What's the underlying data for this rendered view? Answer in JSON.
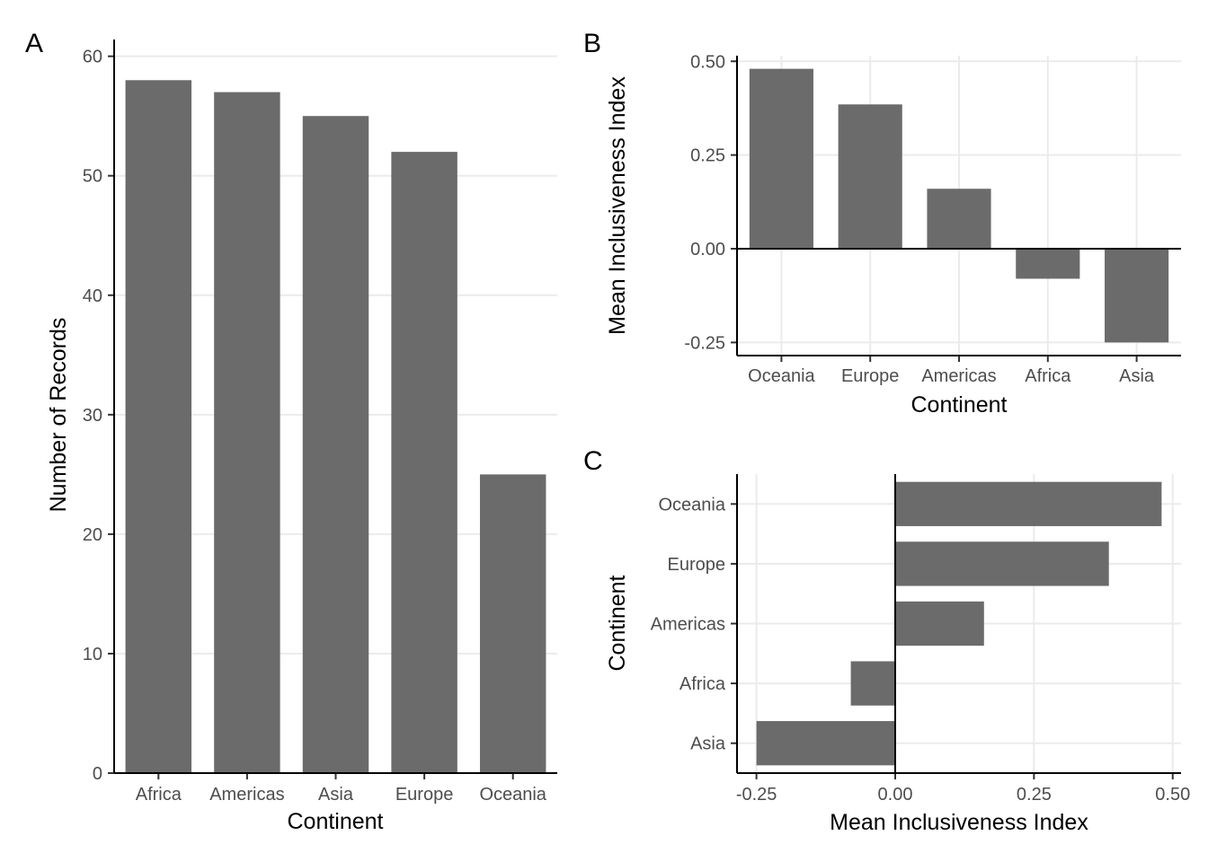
{
  "chart_data": [
    {
      "panel": "A",
      "type": "bar",
      "orientation": "vertical",
      "categories": [
        "Africa",
        "Americas",
        "Asia",
        "Europe",
        "Oceania"
      ],
      "values": [
        58,
        57,
        55,
        52,
        25
      ],
      "xlabel": "Continent",
      "ylabel": "Number of Records",
      "ylim": [
        0,
        60
      ],
      "yticks": [
        "0",
        "10",
        "20",
        "30",
        "40",
        "50",
        "60"
      ],
      "ytick_values": [
        0,
        10,
        20,
        30,
        40,
        50,
        60
      ],
      "bar_color": "#6b6b6b",
      "grid": "horizontal"
    },
    {
      "panel": "B",
      "type": "bar",
      "orientation": "vertical",
      "categories": [
        "Oceania",
        "Europe",
        "Americas",
        "Africa",
        "Asia"
      ],
      "values": [
        0.48,
        0.385,
        0.16,
        -0.08,
        -0.25
      ],
      "xlabel": "Continent",
      "ylabel": "Mean Inclusiveness Index",
      "ylim": [
        -0.285,
        0.515
      ],
      "yticks": [
        "-0.25",
        "0.00",
        "0.25",
        "0.50"
      ],
      "ytick_values": [
        -0.25,
        0,
        0.25,
        0.5
      ],
      "bar_color": "#6b6b6b",
      "grid": "both"
    },
    {
      "panel": "C",
      "type": "bar",
      "orientation": "horizontal",
      "categories": [
        "Oceania",
        "Europe",
        "Americas",
        "Africa",
        "Asia"
      ],
      "values": [
        0.48,
        0.385,
        0.16,
        -0.08,
        -0.25
      ],
      "xlabel": "Mean Inclusiveness Index",
      "ylabel": "Continent",
      "xlim": [
        -0.285,
        0.515
      ],
      "xticks": [
        "-0.25",
        "0.00",
        "0.25",
        "0.50"
      ],
      "xtick_values": [
        -0.25,
        0,
        0.25,
        0.5
      ],
      "bar_color": "#6b6b6b",
      "grid": "both"
    }
  ],
  "colors": {
    "bar": "#6b6b6b",
    "grid": "#ebebeb",
    "axis": "#000000",
    "tick_text": "#4d4d4d"
  }
}
